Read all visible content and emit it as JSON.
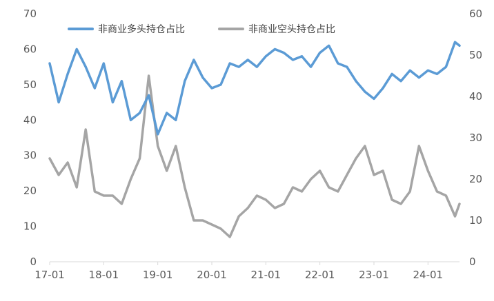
{
  "chart_data": {
    "type": "line",
    "title": "",
    "xlabel": "",
    "ylabel": "",
    "x_ticks": [
      "17-01",
      "18-01",
      "19-01",
      "20-01",
      "21-01",
      "22-01",
      "23-01",
      "24-01"
    ],
    "x_range": [
      "2017-01",
      "2024-08"
    ],
    "y_left": {
      "min": 0,
      "max": 70,
      "ticks": [
        0,
        10,
        20,
        30,
        40,
        50,
        60,
        70
      ]
    },
    "y_right": {
      "min": 0,
      "max": 60,
      "ticks": [
        0,
        10,
        20,
        30,
        40,
        50,
        60
      ]
    },
    "legend_position": "top-left",
    "grid": false,
    "series": [
      {
        "name": "非商业多头持仓占比",
        "axis": "left",
        "color": "#5b9bd5",
        "x": [
          "2017-01",
          "2017-03",
          "2017-05",
          "2017-07",
          "2017-09",
          "2017-11",
          "2018-01",
          "2018-03",
          "2018-05",
          "2018-07",
          "2018-09",
          "2018-11",
          "2019-01",
          "2019-03",
          "2019-05",
          "2019-07",
          "2019-09",
          "2019-11",
          "2020-01",
          "2020-03",
          "2020-05",
          "2020-07",
          "2020-09",
          "2020-11",
          "2021-01",
          "2021-03",
          "2021-05",
          "2021-07",
          "2021-09",
          "2021-11",
          "2022-01",
          "2022-03",
          "2022-05",
          "2022-07",
          "2022-09",
          "2022-11",
          "2023-01",
          "2023-03",
          "2023-05",
          "2023-07",
          "2023-09",
          "2023-11",
          "2024-01",
          "2024-03",
          "2024-05",
          "2024-07",
          "2024-08"
        ],
        "values": [
          56,
          45,
          53,
          60,
          55,
          49,
          56,
          45,
          51,
          40,
          42,
          47,
          36,
          42,
          40,
          51,
          57,
          52,
          49,
          50,
          56,
          55,
          57,
          55,
          58,
          60,
          59,
          57,
          58,
          55,
          59,
          61,
          56,
          55,
          51,
          48,
          46,
          49,
          53,
          51,
          54,
          52,
          54,
          53,
          55,
          62,
          61
        ]
      },
      {
        "name": "非商业空头持仓占比",
        "axis": "right",
        "color": "#a5a5a5",
        "x": [
          "2017-01",
          "2017-03",
          "2017-05",
          "2017-07",
          "2017-09",
          "2017-11",
          "2018-01",
          "2018-03",
          "2018-05",
          "2018-07",
          "2018-09",
          "2018-11",
          "2019-01",
          "2019-03",
          "2019-05",
          "2019-07",
          "2019-09",
          "2019-11",
          "2020-01",
          "2020-03",
          "2020-05",
          "2020-07",
          "2020-09",
          "2020-11",
          "2021-01",
          "2021-03",
          "2021-05",
          "2021-07",
          "2021-09",
          "2021-11",
          "2022-01",
          "2022-03",
          "2022-05",
          "2022-07",
          "2022-09",
          "2022-11",
          "2023-01",
          "2023-03",
          "2023-05",
          "2023-07",
          "2023-09",
          "2023-11",
          "2024-01",
          "2024-03",
          "2024-05",
          "2024-07",
          "2024-08"
        ],
        "values": [
          25,
          21,
          24,
          18,
          32,
          17,
          16,
          16,
          14,
          20,
          25,
          45,
          28,
          22,
          28,
          18,
          10,
          10,
          9,
          8,
          6,
          11,
          13,
          16,
          15,
          13,
          14,
          18,
          17,
          20,
          22,
          18,
          17,
          21,
          25,
          28,
          21,
          22,
          15,
          14,
          17,
          28,
          22,
          17,
          16,
          11,
          14
        ]
      }
    ]
  }
}
